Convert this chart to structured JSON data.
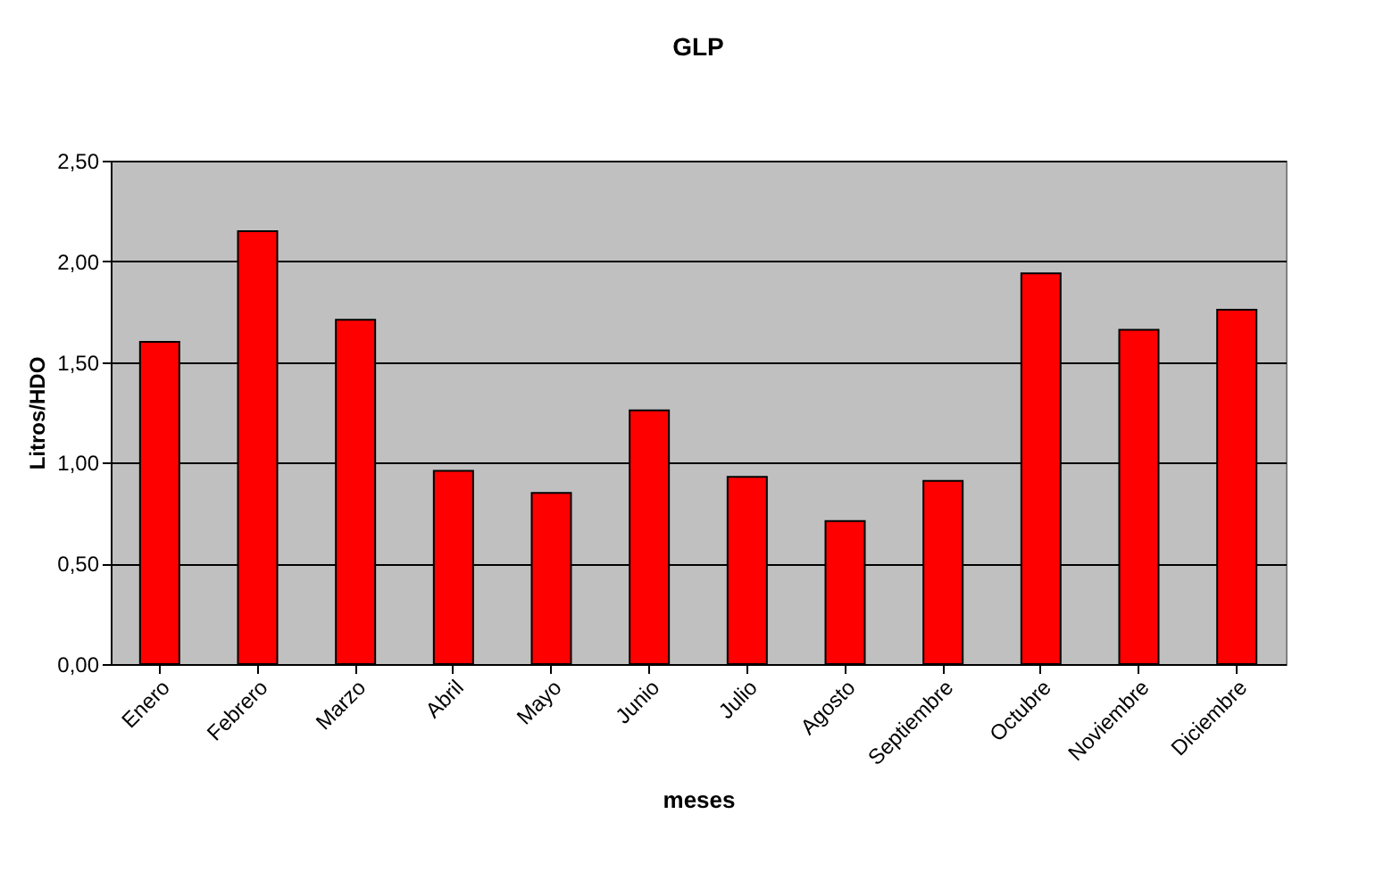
{
  "chart_data": {
    "type": "bar",
    "title": "GLP",
    "xlabel": "meses",
    "ylabel": "Litros/HDO",
    "categories": [
      "Enero",
      "Febrero",
      "Marzo",
      "Abril",
      "Mayo",
      "Junio",
      "Julio",
      "Agosto",
      "Septiembre",
      "Octubre",
      "Noviembre",
      "Diciembre"
    ],
    "values": [
      1.6,
      2.15,
      1.71,
      0.96,
      0.85,
      1.26,
      0.93,
      0.71,
      0.91,
      1.94,
      1.66,
      1.76
    ],
    "color": "#ff0000",
    "ylim": [
      0,
      2.5
    ],
    "yticks": [
      {
        "value": 0,
        "label": "0,00"
      },
      {
        "value": 0.5,
        "label": "0,50"
      },
      {
        "value": 1,
        "label": "1,00"
      },
      {
        "value": 1.5,
        "label": "1,50"
      },
      {
        "value": 2,
        "label": "2,00"
      },
      {
        "value": 2.5,
        "label": "2,50"
      }
    ],
    "grid": "y"
  }
}
